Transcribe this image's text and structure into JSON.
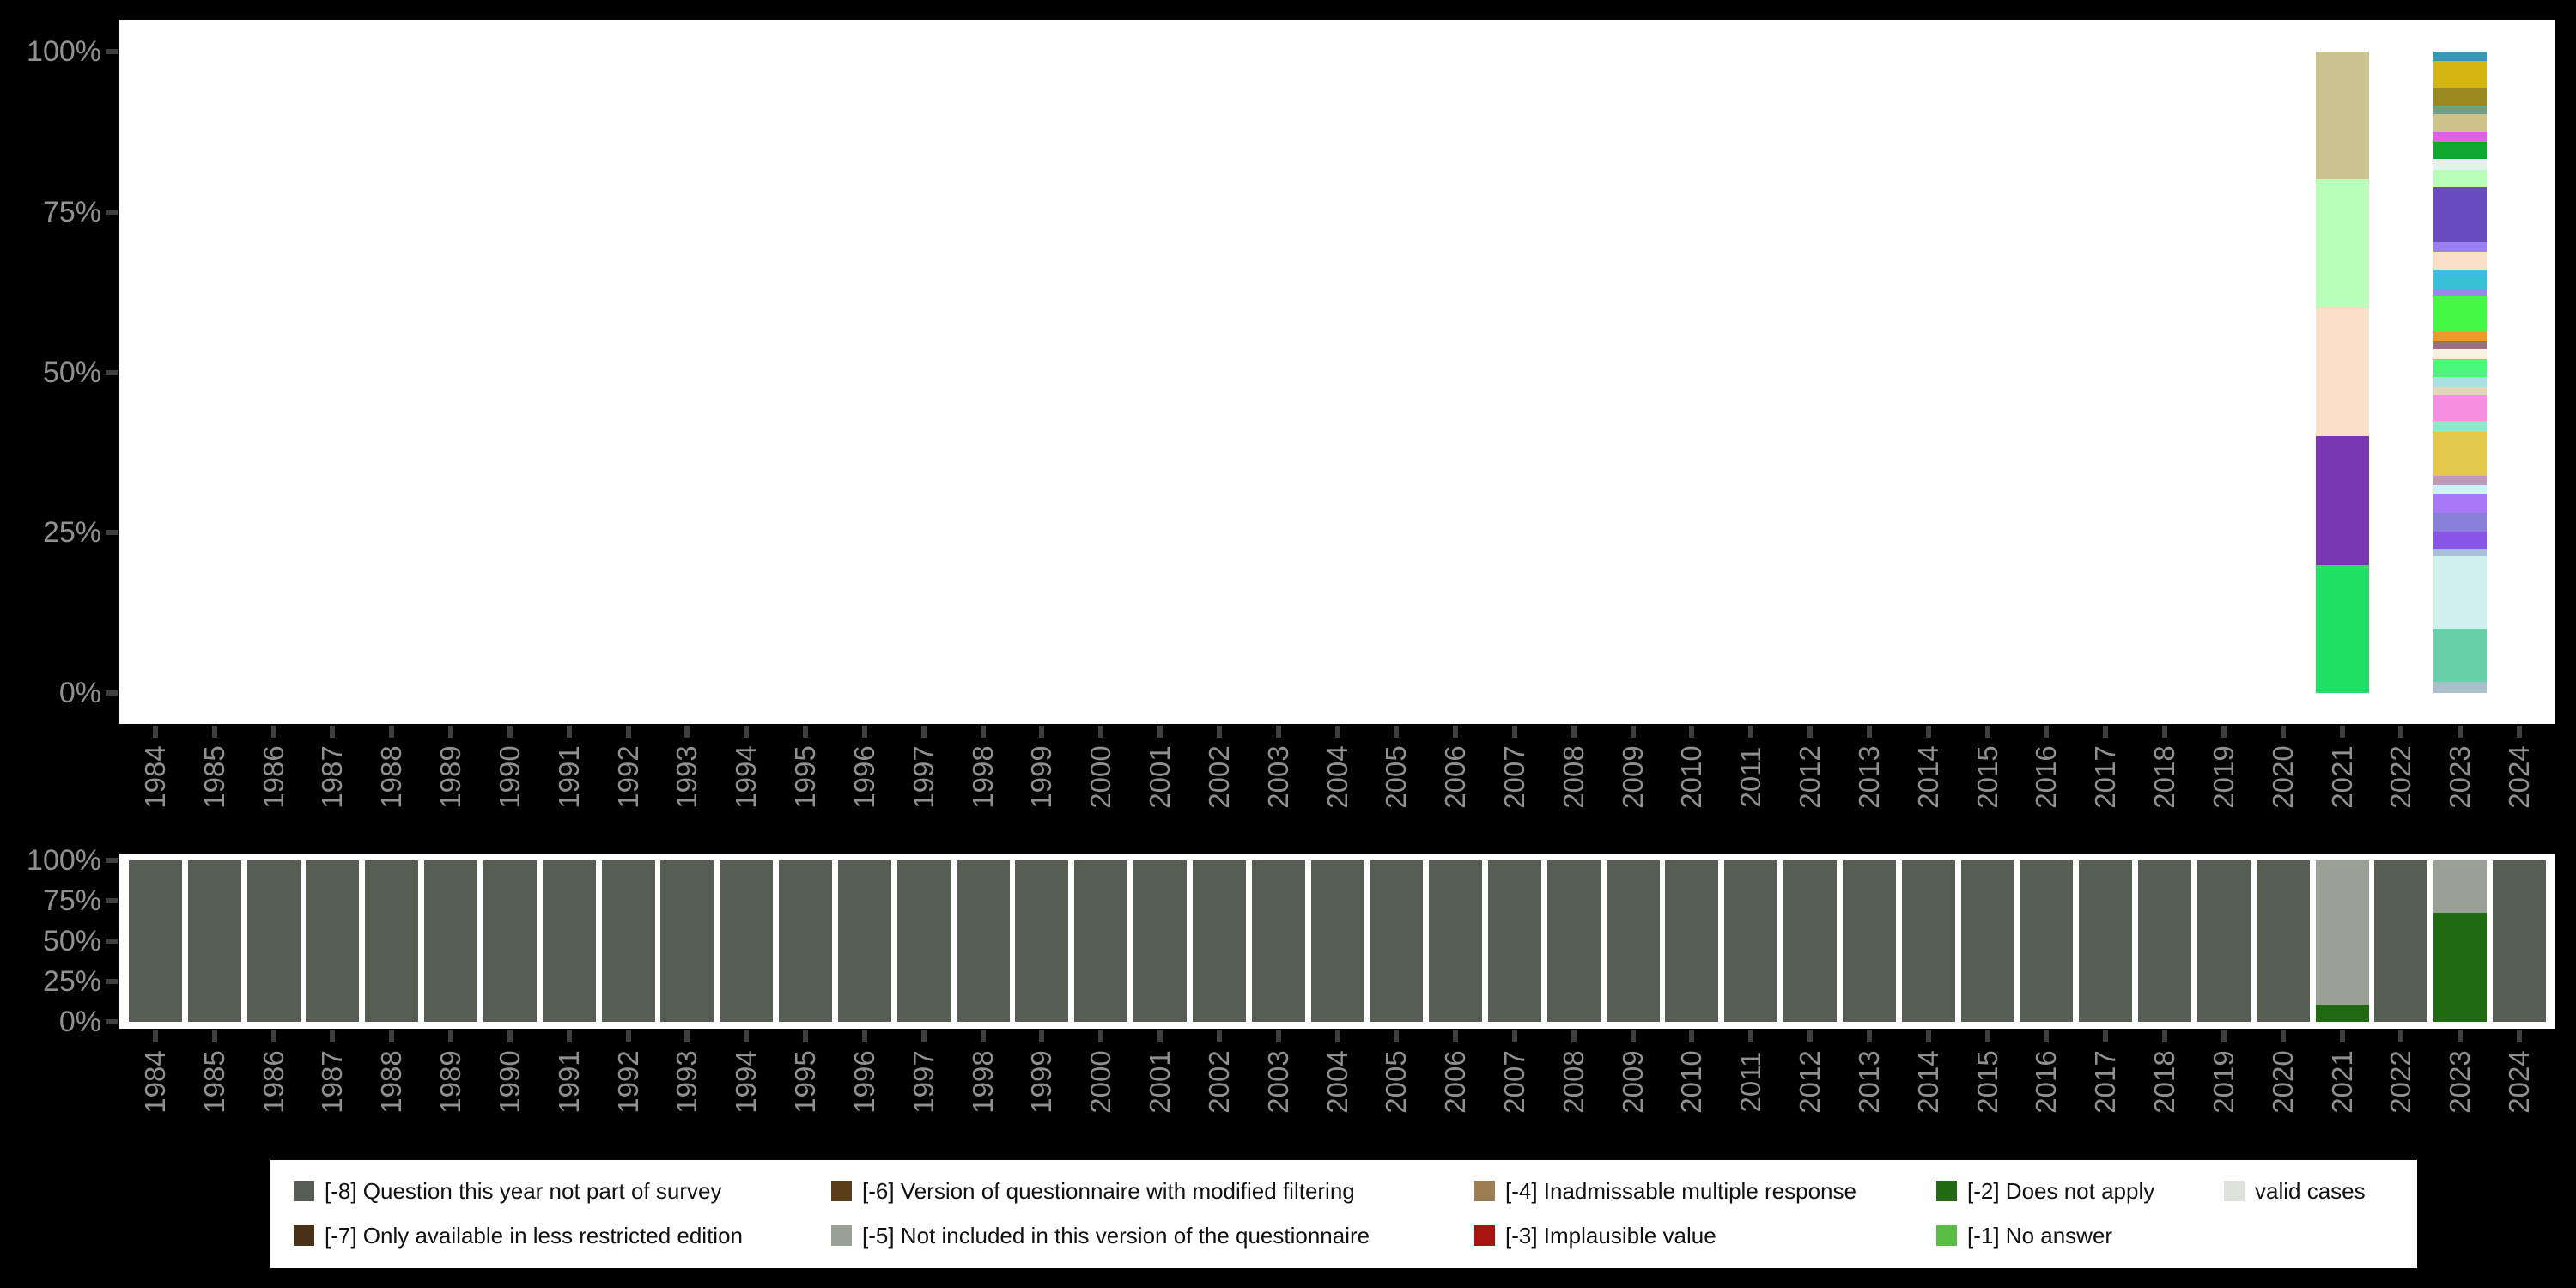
{
  "page": {
    "background": "#000000",
    "plot_background": "#ffffff"
  },
  "axis": {
    "text_color": "#909090",
    "tick_color": "#3f3f3f",
    "ytick_labels_top_to_bottom": [
      "100%",
      "75%",
      "50%",
      "25%",
      "0%"
    ],
    "years": [
      "1984",
      "1985",
      "1986",
      "1987",
      "1988",
      "1989",
      "1990",
      "1991",
      "1992",
      "1993",
      "1994",
      "1995",
      "1996",
      "1997",
      "1998",
      "1999",
      "2000",
      "2001",
      "2002",
      "2003",
      "2004",
      "2005",
      "2006",
      "2007",
      "2008",
      "2009",
      "2010",
      "2011",
      "2012",
      "2013",
      "2014",
      "2015",
      "2016",
      "2017",
      "2018",
      "2019",
      "2020",
      "2021",
      "2022",
      "2023",
      "2024"
    ]
  },
  "legend": {
    "background": "#ffffff",
    "text_color": "#111111",
    "columns": [
      [
        {
          "label": "[-8] Question this year not part of survey",
          "color": "#565e54"
        },
        {
          "label": "[-7] Only available in less restricted edition",
          "color": "#4a3119"
        }
      ],
      [
        {
          "label": "[-6] Version of questionnaire with modified filtering",
          "color": "#5a3c18"
        },
        {
          "label": "[-5] Not included in this version of the questionnaire",
          "color": "#9aa096"
        }
      ],
      [
        {
          "label": "[-4] Inadmissable multiple response",
          "color": "#9c7c50"
        },
        {
          "label": "[-3] Implausible value",
          "color": "#a81410"
        }
      ],
      [
        {
          "label": "[-2] Does not apply",
          "color": "#206a12"
        },
        {
          "label": "[-1] No answer",
          "color": "#57bd43"
        }
      ],
      [
        {
          "label": "valid cases",
          "color": "#dde3da"
        }
      ]
    ]
  },
  "chart_data": [
    {
      "type": "bar",
      "stacked": true,
      "panel": "top",
      "title": "",
      "xlabel": "",
      "ylabel": "",
      "ylim": [
        0,
        100
      ],
      "yticks": [
        "0%",
        "25%",
        "50%",
        "75%",
        "100%"
      ],
      "grid": false,
      "categories": [
        "1984",
        "1985",
        "1986",
        "1987",
        "1988",
        "1989",
        "1990",
        "1991",
        "1992",
        "1993",
        "1994",
        "1995",
        "1996",
        "1997",
        "1998",
        "1999",
        "2000",
        "2001",
        "2002",
        "2003",
        "2004",
        "2005",
        "2006",
        "2007",
        "2008",
        "2009",
        "2010",
        "2011",
        "2012",
        "2013",
        "2014",
        "2015",
        "2016",
        "2017",
        "2018",
        "2019",
        "2020",
        "2021",
        "2022",
        "2023",
        "2024"
      ],
      "note": "Only 2021 and 2023 have bars; segment percentages listed top to bottom of the stack.",
      "bars": {
        "2021": [
          {
            "color": "#ccc48f",
            "pct": 20
          },
          {
            "color": "#b9ffb9",
            "pct": 20
          },
          {
            "color": "#f8dfc6",
            "pct": 20
          },
          {
            "color": "#7b37b3",
            "pct": 20
          },
          {
            "color": "#22e065",
            "pct": 20
          }
        ],
        "2023": [
          {
            "color": "#3b97b0",
            "pct": 1.5
          },
          {
            "color": "#d4b512",
            "pct": 4.1
          },
          {
            "color": "#998a20",
            "pct": 2.9
          },
          {
            "color": "#6f9f8a",
            "pct": 1.3
          },
          {
            "color": "#ccc48a",
            "pct": 2.8
          },
          {
            "color": "#e060e0",
            "pct": 1.4
          },
          {
            "color": "#10a830",
            "pct": 2.8
          },
          {
            "color": "#e0f5ea",
            "pct": 1.7
          },
          {
            "color": "#b9ffb9",
            "pct": 2.7
          },
          {
            "color": "#6a4ac0",
            "pct": 8.5
          },
          {
            "color": "#9a80f0",
            "pct": 1.6
          },
          {
            "color": "#f8dfc6",
            "pct": 2.7
          },
          {
            "color": "#38c0d8",
            "pct": 2.9
          },
          {
            "color": "#9a87ee",
            "pct": 1.3
          },
          {
            "color": "#44f844",
            "pct": 5.6
          },
          {
            "color": "#f0982a",
            "pct": 1.3
          },
          {
            "color": "#9a7080",
            "pct": 1.4
          },
          {
            "color": "#f5f2e0",
            "pct": 1.4
          },
          {
            "color": "#4af878",
            "pct": 2.8
          },
          {
            "color": "#a8e0e4",
            "pct": 1.6
          },
          {
            "color": "#e0d8b8",
            "pct": 1.3
          },
          {
            "color": "#f88fe0",
            "pct": 4.0
          },
          {
            "color": "#90e8c8",
            "pct": 1.7
          },
          {
            "color": "#e2c94a",
            "pct": 6.8
          },
          {
            "color": "#c098b8",
            "pct": 1.5
          },
          {
            "color": "#d0f0fa",
            "pct": 1.4
          },
          {
            "color": "#a878f8",
            "pct": 2.9
          },
          {
            "color": "#8880d8",
            "pct": 2.9
          },
          {
            "color": "#8855e8",
            "pct": 2.7
          },
          {
            "color": "#a8c0d8",
            "pct": 1.3
          },
          {
            "color": "#d0f0f0",
            "pct": 11.2
          },
          {
            "color": "#68d0a8",
            "pct": 8.3
          },
          {
            "color": "#a8c0cc",
            "pct": 1.7
          }
        ]
      }
    },
    {
      "type": "bar",
      "stacked": true,
      "panel": "bottom",
      "title": "",
      "xlabel": "",
      "ylabel": "",
      "ylim": [
        0,
        100
      ],
      "yticks": [
        "0%",
        "25%",
        "50%",
        "75%",
        "100%"
      ],
      "grid": false,
      "categories": [
        "1984",
        "1985",
        "1986",
        "1987",
        "1988",
        "1989",
        "1990",
        "1991",
        "1992",
        "1993",
        "1994",
        "1995",
        "1996",
        "1997",
        "1998",
        "1999",
        "2000",
        "2001",
        "2002",
        "2003",
        "2004",
        "2005",
        "2006",
        "2007",
        "2008",
        "2009",
        "2010",
        "2011",
        "2012",
        "2013",
        "2014",
        "2015",
        "2016",
        "2017",
        "2018",
        "2019",
        "2020",
        "2021",
        "2022",
        "2023",
        "2024"
      ],
      "note": "Every year shows the default stack unless overridden; segments listed top to bottom.",
      "default_stack": [
        {
          "label": "[-8] Question this year not part of survey",
          "color": "#565e54",
          "pct": 100
        }
      ],
      "bars": {
        "2021": [
          {
            "label": "[-5] Not included in this version of the questionnaire",
            "color": "#9aa096",
            "pct": 89.4
          },
          {
            "label": "[-2] Does not apply",
            "color": "#206a12",
            "pct": 10.6
          }
        ],
        "2023": [
          {
            "label": "[-5] Not included in this version of the questionnaire",
            "color": "#9aa096",
            "pct": 32.3
          },
          {
            "label": "[-2] Does not apply",
            "color": "#206a12",
            "pct": 67.7
          }
        ]
      }
    }
  ]
}
